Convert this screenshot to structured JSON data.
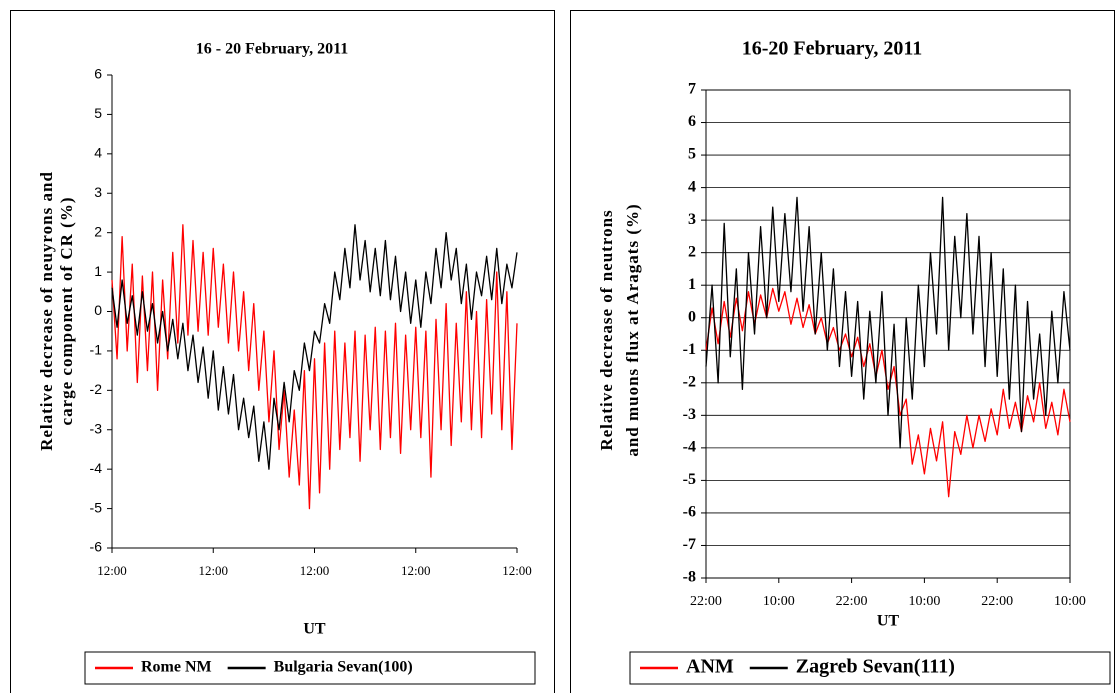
{
  "chart_data": [
    {
      "type": "line",
      "title": "16 - 20 February, 2011",
      "x_label": "UT",
      "y_label": [
        "Relative decrease of neuyrons and",
        "carge component of CR (%)"
      ],
      "categories": [
        "12:00",
        null,
        null,
        null,
        null,
        null,
        null,
        null,
        null,
        null,
        null,
        null,
        null,
        null,
        null,
        null,
        null,
        null,
        null,
        null,
        "12:00",
        null,
        null,
        null,
        null,
        null,
        null,
        null,
        null,
        null,
        null,
        null,
        null,
        null,
        null,
        null,
        null,
        null,
        null,
        null,
        "12:00",
        null,
        null,
        null,
        null,
        null,
        null,
        null,
        null,
        null,
        null,
        null,
        null,
        null,
        null,
        null,
        null,
        null,
        null,
        null,
        "12:00",
        null,
        null,
        null,
        null,
        null,
        null,
        null,
        null,
        null,
        null,
        null,
        null,
        null,
        null,
        null,
        null,
        null,
        null,
        null,
        "12:00"
      ],
      "series": [
        {
          "name": "Rome NM",
          "color": "#ff0000",
          "values": [
            0.8,
            -1.2,
            1.9,
            -1.0,
            1.2,
            -1.8,
            0.9,
            -1.5,
            1.0,
            -2.0,
            0.8,
            -1.2,
            1.5,
            -0.8,
            2.2,
            -0.6,
            1.8,
            -0.5,
            1.5,
            -0.6,
            1.6,
            -0.4,
            1.2,
            -0.8,
            1.0,
            -1.0,
            0.5,
            -1.5,
            0.2,
            -2.0,
            -0.5,
            -2.8,
            -1.0,
            -3.5,
            -2.0,
            -4.2,
            -2.5,
            -4.4,
            -1.5,
            -5.0,
            -1.2,
            -4.6,
            -0.8,
            -4.0,
            -0.5,
            -3.5,
            -0.8,
            -3.2,
            -0.5,
            -3.8,
            -0.6,
            -3.0,
            -0.4,
            -3.5,
            -0.5,
            -3.2,
            -0.3,
            -3.6,
            -0.6,
            -3.0,
            -0.4,
            -3.2,
            -0.5,
            -4.2,
            -0.2,
            -3.0,
            0.2,
            -3.4,
            -0.3,
            -2.8,
            0.5,
            -3.0,
            0.0,
            -3.2,
            0.3,
            -2.6,
            1.0,
            -3.0,
            0.5,
            -3.5,
            -0.3
          ]
        },
        {
          "name": "Bulgaria Sevan(100)",
          "color": "#000000",
          "values": [
            0.6,
            -0.4,
            0.8,
            -0.3,
            0.4,
            -0.6,
            0.5,
            -0.5,
            0.2,
            -0.8,
            0.0,
            -1.0,
            -0.2,
            -1.2,
            -0.3,
            -1.5,
            -0.6,
            -1.8,
            -0.9,
            -2.2,
            -1.0,
            -2.5,
            -1.4,
            -2.6,
            -1.6,
            -3.0,
            -2.2,
            -3.2,
            -2.4,
            -3.8,
            -2.8,
            -4.0,
            -2.2,
            -3.0,
            -1.8,
            -2.8,
            -1.5,
            -2.0,
            -0.8,
            -1.5,
            -0.5,
            -0.8,
            0.2,
            -0.3,
            1.0,
            0.3,
            1.6,
            0.6,
            2.2,
            0.8,
            1.8,
            0.5,
            1.6,
            0.4,
            1.8,
            0.3,
            1.4,
            0.0,
            1.0,
            -0.3,
            0.8,
            -0.4,
            1.0,
            0.2,
            1.6,
            0.6,
            2.0,
            0.8,
            1.6,
            0.2,
            1.2,
            -0.2,
            1.0,
            0.4,
            1.4,
            0.3,
            1.6,
            0.2,
            1.2,
            0.6,
            1.5
          ]
        }
      ],
      "ylim": [
        -6,
        6
      ],
      "yticks": [
        -6,
        -5,
        -4,
        -3,
        -2,
        -1,
        0,
        1,
        2,
        3,
        4,
        5,
        6
      ],
      "grid": false,
      "legend": "bottom"
    },
    {
      "type": "line",
      "title": "16-20 February, 2011",
      "x_label": "UT",
      "y_label": [
        "Relative decrease of neutrons",
        "and muons flux at Aragats (%)"
      ],
      "categories": [
        "22:00",
        null,
        null,
        null,
        null,
        null,
        null,
        null,
        null,
        null,
        null,
        null,
        "10:00",
        null,
        null,
        null,
        null,
        null,
        null,
        null,
        null,
        null,
        null,
        null,
        "22:00",
        null,
        null,
        null,
        null,
        null,
        null,
        null,
        null,
        null,
        null,
        null,
        "10:00",
        null,
        null,
        null,
        null,
        null,
        null,
        null,
        null,
        null,
        null,
        null,
        "22:00",
        null,
        null,
        null,
        null,
        null,
        null,
        null,
        null,
        null,
        null,
        null,
        "10:00"
      ],
      "series": [
        {
          "name": "ANM",
          "color": "#ff0000",
          "values": [
            -1.0,
            0.3,
            -0.8,
            0.5,
            -0.6,
            0.6,
            -0.4,
            0.8,
            -0.2,
            0.7,
            0.0,
            0.9,
            0.2,
            0.8,
            -0.2,
            0.6,
            -0.3,
            0.4,
            -0.5,
            0.0,
            -0.8,
            -0.3,
            -1.0,
            -0.5,
            -1.2,
            -0.6,
            -1.5,
            -0.8,
            -1.8,
            -1.0,
            -2.2,
            -1.5,
            -3.0,
            -2.5,
            -4.5,
            -3.6,
            -4.8,
            -3.4,
            -4.4,
            -3.2,
            -5.5,
            -3.5,
            -4.2,
            -3.0,
            -4.0,
            -3.0,
            -3.8,
            -2.8,
            -3.6,
            -2.2,
            -3.4,
            -2.6,
            -3.5,
            -2.4,
            -3.2,
            -2.0,
            -3.4,
            -2.6,
            -3.6,
            -2.2,
            -3.2
          ]
        },
        {
          "name": "Zagreb Sevan(111)",
          "color": "#000000",
          "values": [
            -1.5,
            1.0,
            -2.0,
            2.9,
            -1.2,
            1.5,
            -2.2,
            2.0,
            -0.5,
            2.8,
            0.0,
            3.4,
            0.5,
            3.2,
            0.8,
            3.7,
            0.2,
            2.8,
            -0.5,
            2.0,
            -1.0,
            1.5,
            -1.5,
            0.8,
            -1.8,
            0.5,
            -2.5,
            0.2,
            -2.0,
            0.8,
            -3.0,
            -0.2,
            -4.0,
            0.0,
            -2.5,
            1.0,
            -1.5,
            2.0,
            -0.5,
            3.7,
            -1.0,
            2.5,
            0.0,
            3.2,
            -0.5,
            2.5,
            -1.5,
            2.0,
            -1.8,
            1.5,
            -2.5,
            1.0,
            -3.5,
            0.5,
            -2.5,
            -0.5,
            -3.0,
            0.2,
            -2.0,
            0.8,
            -1.0
          ]
        }
      ],
      "ylim": [
        -8,
        7
      ],
      "yticks": [
        -8,
        -7,
        -6,
        -5,
        -4,
        -3,
        -2,
        -1,
        0,
        1,
        2,
        3,
        4,
        5,
        6,
        7
      ],
      "grid": true,
      "legend": "bottom"
    }
  ]
}
